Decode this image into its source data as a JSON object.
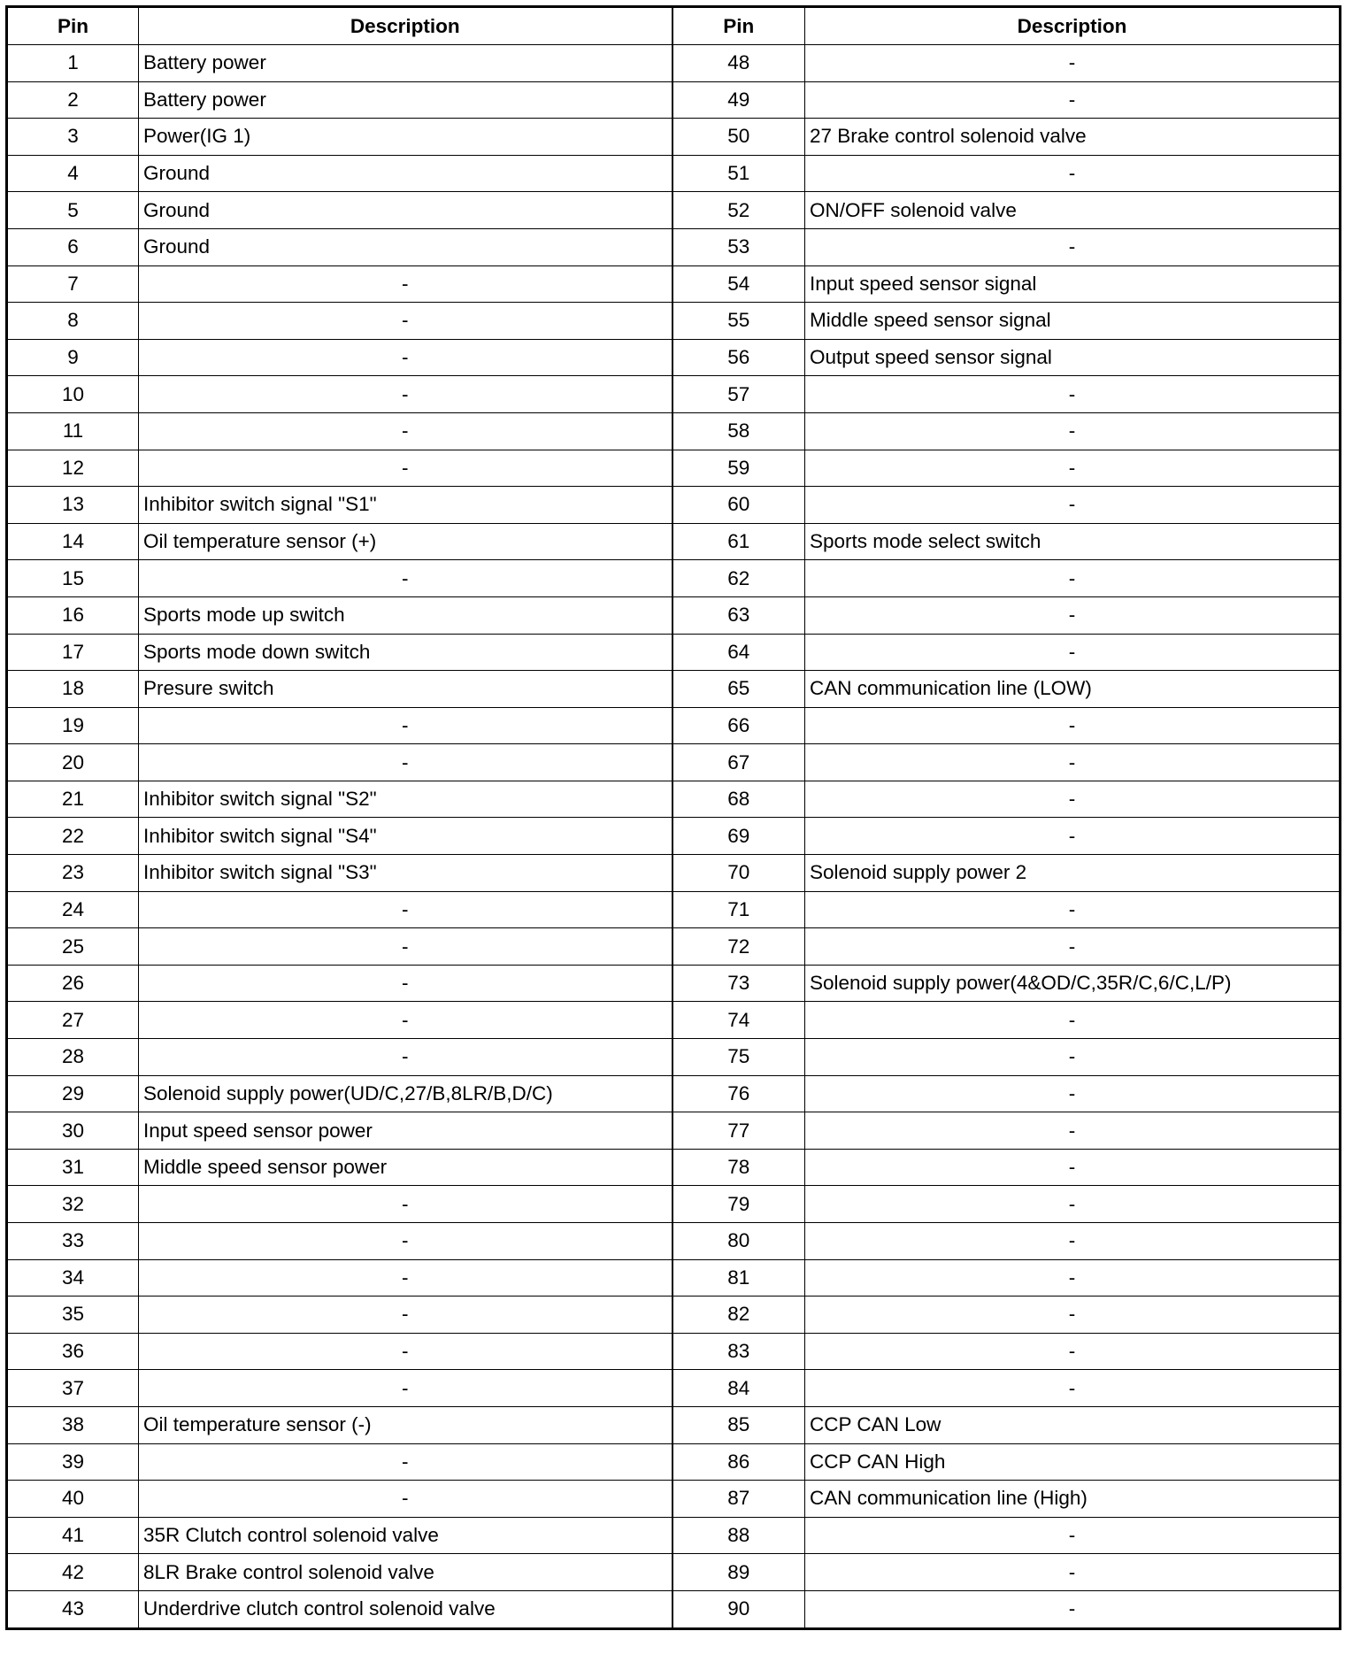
{
  "headers": {
    "left_pin": "Pin",
    "left_desc": "Description",
    "right_pin": "Pin",
    "right_desc": "Description"
  },
  "rows": [
    {
      "lp": "1",
      "ld": "Battery power",
      "rp": "48",
      "rd": "-"
    },
    {
      "lp": "2",
      "ld": "Battery power",
      "rp": "49",
      "rd": "-"
    },
    {
      "lp": "3",
      "ld": "Power(IG 1)",
      "rp": "50",
      "rd": "27 Brake control solenoid valve"
    },
    {
      "lp": "4",
      "ld": "Ground",
      "rp": "51",
      "rd": "-"
    },
    {
      "lp": "5",
      "ld": "Ground",
      "rp": "52",
      "rd": "ON/OFF solenoid valve"
    },
    {
      "lp": "6",
      "ld": "Ground",
      "rp": "53",
      "rd": "-"
    },
    {
      "lp": "7",
      "ld": "-",
      "rp": "54",
      "rd": "Input speed sensor signal"
    },
    {
      "lp": "8",
      "ld": "-",
      "rp": "55",
      "rd": "Middle speed sensor signal"
    },
    {
      "lp": "9",
      "ld": "-",
      "rp": "56",
      "rd": "Output speed sensor signal"
    },
    {
      "lp": "10",
      "ld": "-",
      "rp": "57",
      "rd": "-"
    },
    {
      "lp": "11",
      "ld": "-",
      "rp": "58",
      "rd": "-"
    },
    {
      "lp": "12",
      "ld": "-",
      "rp": "59",
      "rd": "-"
    },
    {
      "lp": "13",
      "ld": "Inhibitor switch signal \"S1\"",
      "rp": "60",
      "rd": "-"
    },
    {
      "lp": "14",
      "ld": "Oil temperature sensor (+)",
      "rp": "61",
      "rd": "Sports mode select switch"
    },
    {
      "lp": "15",
      "ld": "-",
      "rp": "62",
      "rd": "-"
    },
    {
      "lp": "16",
      "ld": "Sports mode up switch",
      "rp": "63",
      "rd": "-"
    },
    {
      "lp": "17",
      "ld": "Sports mode down switch",
      "rp": "64",
      "rd": "-"
    },
    {
      "lp": "18",
      "ld": "Presure switch",
      "rp": "65",
      "rd": "CAN communication line (LOW)"
    },
    {
      "lp": "19",
      "ld": "-",
      "rp": "66",
      "rd": "-"
    },
    {
      "lp": "20",
      "ld": "-",
      "rp": "67",
      "rd": "-"
    },
    {
      "lp": "21",
      "ld": "Inhibitor switch signal \"S2\"",
      "rp": "68",
      "rd": "-"
    },
    {
      "lp": "22",
      "ld": "Inhibitor switch signal \"S4\"",
      "rp": "69",
      "rd": "-"
    },
    {
      "lp": "23",
      "ld": "Inhibitor switch signal \"S3\"",
      "rp": "70",
      "rd": "Solenoid supply power 2"
    },
    {
      "lp": "24",
      "ld": "-",
      "rp": "71",
      "rd": "-"
    },
    {
      "lp": "25",
      "ld": "-",
      "rp": "72",
      "rd": "-"
    },
    {
      "lp": "26",
      "ld": "-",
      "rp": "73",
      "rd": "Solenoid supply power(4&OD/C,35R/C,6/C,L/P)"
    },
    {
      "lp": "27",
      "ld": "-",
      "rp": "74",
      "rd": "-"
    },
    {
      "lp": "28",
      "ld": "-",
      "rp": "75",
      "rd": "-"
    },
    {
      "lp": "29",
      "ld": "Solenoid supply power(UD/C,27/B,8LR/B,D/C)",
      "rp": "76",
      "rd": "-"
    },
    {
      "lp": "30",
      "ld": "Input speed sensor power",
      "rp": "77",
      "rd": "-"
    },
    {
      "lp": "31",
      "ld": "Middle speed sensor power",
      "rp": "78",
      "rd": "-"
    },
    {
      "lp": "32",
      "ld": "-",
      "rp": "79",
      "rd": "-"
    },
    {
      "lp": "33",
      "ld": "-",
      "rp": "80",
      "rd": "-"
    },
    {
      "lp": "34",
      "ld": "-",
      "rp": "81",
      "rd": "-"
    },
    {
      "lp": "35",
      "ld": "-",
      "rp": "82",
      "rd": "-"
    },
    {
      "lp": "36",
      "ld": "-",
      "rp": "83",
      "rd": "-"
    },
    {
      "lp": "37",
      "ld": "-",
      "rp": "84",
      "rd": "-"
    },
    {
      "lp": "38",
      "ld": "Oil temperature sensor (-)",
      "rp": "85",
      "rd": "CCP CAN Low"
    },
    {
      "lp": "39",
      "ld": "-",
      "rp": "86",
      "rd": "CCP CAN High"
    },
    {
      "lp": "40",
      "ld": "-",
      "rp": "87",
      "rd": "CAN communication line (High)"
    },
    {
      "lp": "41",
      "ld": "35R Clutch control solenoid valve",
      "rp": "88",
      "rd": "-"
    },
    {
      "lp": "42",
      "ld": "8LR Brake control solenoid valve",
      "rp": "89",
      "rd": "-"
    },
    {
      "lp": "43",
      "ld": "Underdrive clutch control solenoid valve",
      "rp": "90",
      "rd": "-"
    }
  ]
}
